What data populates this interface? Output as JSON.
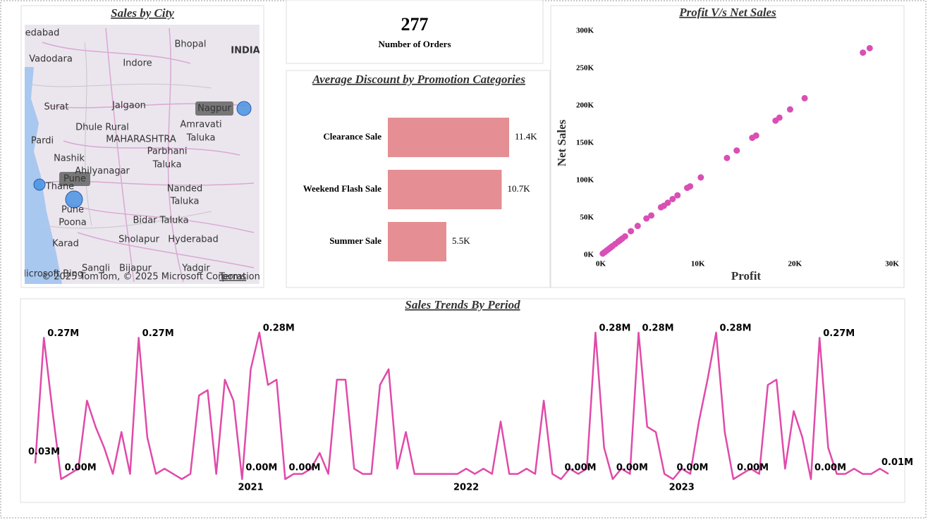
{
  "map": {
    "title": "Sales by City",
    "labels": [
      "edabad",
      "Bhopal",
      "INDIA",
      "Vadodara",
      "Indore",
      "Surat",
      "Jalgaon",
      "Dhule Rural",
      "MAHARASHTRA",
      "Amravati",
      "Taluka",
      "Pardi",
      "Nashik",
      "Parbhani",
      "Taluka",
      "Ahilyanagar",
      "Thane",
      "Nanded",
      "Taluka",
      "Pune",
      "Poona",
      "Bidar Taluka",
      "Karad",
      "Sholapur",
      "Hyderabad",
      "Sangli",
      "Bijapur",
      "Yadgir"
    ],
    "bubble_labels": [
      "Nagpur",
      "Pune"
    ],
    "attribution": "© 2025 TomTom, © 2025 Microsoft Corporation",
    "terms": "Terms",
    "brand": "Microsoft Bing"
  },
  "kpi": {
    "value": "277",
    "label": "Number of Orders"
  },
  "chart_data": [
    {
      "type": "hbar",
      "title": "Average Discount by Promotion Categories",
      "categories": [
        "Clearance Sale",
        "Weekend Flash Sale",
        "Summer Sale"
      ],
      "values": [
        11400,
        10700,
        5500
      ],
      "value_labels": [
        "11.4K",
        "10.7K",
        "5.5K"
      ],
      "color": "#e58e93"
    },
    {
      "type": "scatter",
      "title": "Profit V/s Net Sales",
      "x_label": "Profit",
      "y_label": "Net Sales",
      "color": "#d94fb5",
      "xlim": [
        0,
        30000
      ],
      "xticks": [
        {
          "value": 0,
          "label": "0K"
        },
        {
          "value": 10000,
          "label": "10K"
        },
        {
          "value": 20000,
          "label": "20K"
        },
        {
          "value": 30000,
          "label": "30K"
        }
      ],
      "ylim": [
        0,
        300000
      ],
      "yticks": [
        {
          "value": 0,
          "label": "0K"
        },
        {
          "value": 50000,
          "label": "50K"
        },
        {
          "value": 100000,
          "label": "100K"
        },
        {
          "value": 150000,
          "label": "150K"
        },
        {
          "value": 200000,
          "label": "200K"
        },
        {
          "value": 250000,
          "label": "250K"
        },
        {
          "value": 300000,
          "label": "300K"
        }
      ],
      "x": [
        27000,
        27700,
        21000,
        19500,
        18400,
        18000,
        16000,
        15600,
        14000,
        13000,
        10300,
        9200,
        8900,
        7900,
        7400,
        6900,
        6500,
        6200,
        5200,
        4700,
        3800,
        3100,
        2500,
        2200,
        2000,
        1800,
        1500,
        1200,
        1000,
        800,
        600,
        400,
        200
      ],
      "values": [
        271000,
        277000,
        210000,
        195000,
        184000,
        180000,
        160000,
        157000,
        140000,
        130000,
        104000,
        92000,
        90000,
        80000,
        75000,
        70000,
        66000,
        64000,
        53000,
        49000,
        39000,
        32000,
        25000,
        22000,
        20000,
        18000,
        15000,
        12000,
        10000,
        8000,
        6000,
        4000,
        2000
      ]
    },
    {
      "type": "line",
      "title": "Sales Trends By Period",
      "color": "#e04aa9",
      "categories": [
        null,
        null,
        null,
        null,
        null,
        null,
        null,
        null,
        null,
        null,
        null,
        null,
        null,
        null,
        null,
        null,
        null,
        null,
        null,
        null,
        null,
        null,
        null,
        null,
        null,
        "2021",
        null,
        null,
        null,
        null,
        null,
        null,
        null,
        null,
        null,
        null,
        null,
        null,
        null,
        null,
        null,
        null,
        null,
        null,
        null,
        null,
        null,
        null,
        null,
        null,
        "2022",
        null,
        null,
        null,
        null,
        null,
        null,
        null,
        null,
        null,
        null,
        null,
        null,
        null,
        null,
        null,
        null,
        null,
        null,
        null,
        null,
        null,
        null,
        null,
        null,
        "2023",
        null,
        null,
        null,
        null,
        null,
        null,
        null,
        null,
        null,
        null,
        null,
        null,
        null,
        null,
        null,
        null,
        null,
        null,
        null,
        null,
        null,
        null,
        null,
        null
      ],
      "values": [
        0.03,
        0.27,
        0.13,
        0.0,
        0.01,
        0.02,
        0.15,
        0.1,
        0.06,
        0.01,
        0.09,
        0.01,
        0.27,
        0.08,
        0.01,
        0.02,
        0.01,
        0.0,
        0.01,
        0.16,
        0.17,
        0.01,
        0.19,
        0.15,
        0.0,
        0.21,
        0.28,
        0.18,
        0.19,
        0.0,
        0.01,
        0.01,
        0.02,
        0.05,
        0.01,
        0.19,
        0.19,
        0.02,
        0.01,
        0.01,
        0.18,
        0.21,
        0.02,
        0.09,
        0.01,
        0.01,
        0.01,
        0.01,
        0.01,
        0.01,
        0.02,
        0.01,
        0.02,
        0.01,
        0.11,
        0.01,
        0.01,
        0.02,
        0.01,
        0.15,
        0.01,
        0.0,
        0.02,
        0.01,
        0.02,
        0.28,
        0.06,
        0.0,
        0.02,
        0.01,
        0.28,
        0.1,
        0.09,
        0.01,
        0.0,
        0.02,
        0.01,
        0.11,
        0.19,
        0.28,
        0.09,
        0.0,
        0.01,
        0.02,
        0.01,
        0.18,
        0.19,
        0.02,
        0.13,
        0.08,
        0.0,
        0.27,
        0.06,
        0.01,
        0.01,
        0.02,
        0.01,
        0.01,
        0.02,
        0.01
      ],
      "value_labels": [
        "0.03M",
        "0.27M",
        null,
        "0.00M",
        null,
        null,
        null,
        null,
        null,
        null,
        null,
        null,
        "0.27M",
        null,
        null,
        null,
        null,
        null,
        null,
        null,
        null,
        null,
        null,
        null,
        "0.00M",
        null,
        "0.28M",
        null,
        null,
        "0.00M",
        null,
        null,
        null,
        null,
        null,
        null,
        null,
        null,
        null,
        null,
        null,
        null,
        null,
        null,
        null,
        null,
        null,
        null,
        null,
        null,
        null,
        null,
        null,
        null,
        null,
        null,
        null,
        null,
        null,
        null,
        null,
        "0.00M",
        null,
        null,
        null,
        "0.28M",
        null,
        "0.00M",
        null,
        null,
        "0.28M",
        null,
        null,
        null,
        "0.00M",
        null,
        null,
        null,
        null,
        "0.28M",
        null,
        "0.00M",
        null,
        null,
        null,
        null,
        null,
        null,
        null,
        null,
        "0.00M",
        "0.27M",
        null,
        null,
        null,
        null,
        null,
        null,
        null,
        "0.01M"
      ]
    }
  ]
}
